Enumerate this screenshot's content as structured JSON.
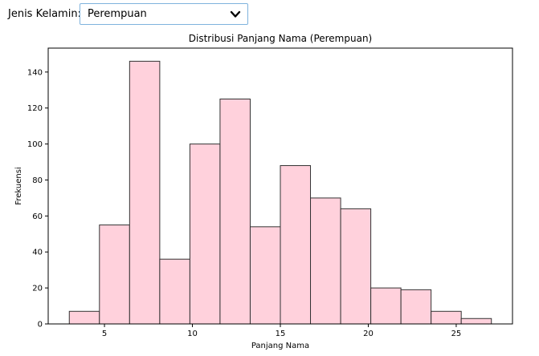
{
  "filter": {
    "label": "Jenis Kelamin:",
    "selected": "Perempuan",
    "icon": "chevron-down-icon"
  },
  "chart_data": {
    "type": "bar",
    "title": "Distribusi Panjang Nama (Perempuan)",
    "xlabel": "Panjang Nama",
    "ylabel": "Frekuensi",
    "bin_edges": [
      3.0,
      4.714,
      6.429,
      8.143,
      9.857,
      11.571,
      13.286,
      15.0,
      16.714,
      18.429,
      20.143,
      21.857,
      23.571,
      25.286,
      27.0
    ],
    "values": [
      7,
      55,
      146,
      36,
      100,
      125,
      54,
      88,
      70,
      64,
      20,
      19,
      7,
      3
    ],
    "xlim": [
      1.8,
      28.2
    ],
    "ylim": [
      0,
      153.3
    ],
    "xticks": [
      5,
      10,
      15,
      20,
      25
    ],
    "yticks": [
      0,
      20,
      40,
      60,
      80,
      100,
      120,
      140
    ],
    "bar_color": "#ffd1dc",
    "edge_color": "#333333",
    "grid": false,
    "legend": "none"
  }
}
